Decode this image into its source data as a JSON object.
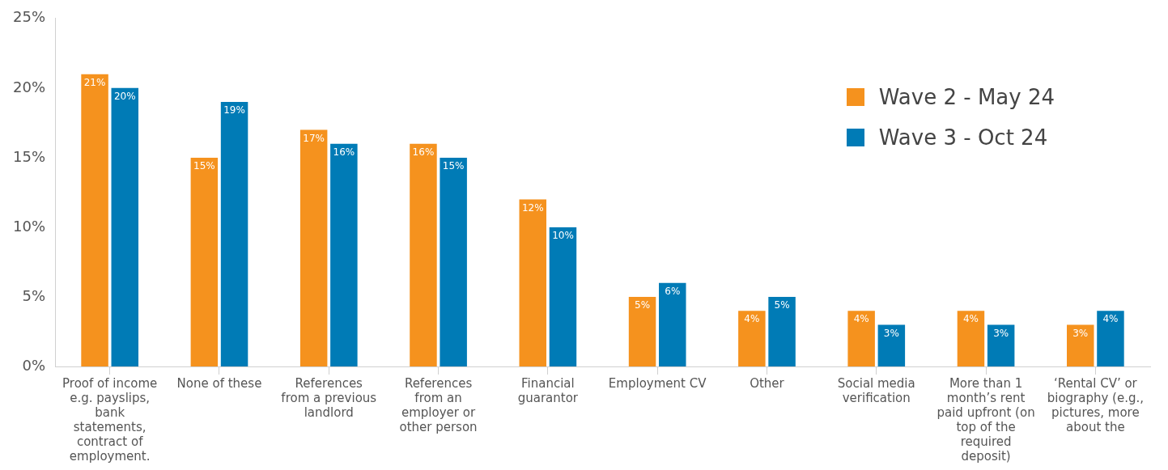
{
  "chart_data": {
    "type": "bar",
    "categories": [
      "Proof of income e.g. payslips, bank statements, contract of employment.",
      "None of these",
      "References from a previous landlord",
      "References from an employer or other person",
      "Financial guarantor",
      "Employment CV",
      "Other",
      "Social media verification",
      "More than 1 month’s rent paid upfront (on top of the required deposit)",
      "‘Rental CV’ or biography (e.g., pictures, more about the"
    ],
    "series": [
      {
        "name": "Wave 2 - May 24",
        "color": "#f5921e",
        "values": [
          21,
          15,
          17,
          16,
          12,
          5,
          4,
          4,
          4,
          3
        ],
        "value_labels": [
          "21%",
          "15%",
          "17%",
          "16%",
          "12%",
          "5%",
          "4%",
          "4%",
          "4%",
          "3%"
        ]
      },
      {
        "name": "Wave 3 - Oct 24",
        "color": "#007bb6",
        "values": [
          20,
          19,
          16,
          15,
          10,
          6,
          5,
          3,
          3,
          4
        ],
        "value_labels": [
          "20%",
          "19%",
          "16%",
          "15%",
          "10%",
          "6%",
          "5%",
          "3%",
          "3%",
          "4%"
        ]
      }
    ],
    "ylim": [
      0,
      25
    ],
    "yticks": [
      {
        "value": 0,
        "label": "0%"
      },
      {
        "value": 5,
        "label": "5%"
      },
      {
        "value": 10,
        "label": "10%"
      },
      {
        "value": 15,
        "label": "15%"
      },
      {
        "value": 20,
        "label": "20%"
      },
      {
        "value": 25,
        "label": "25%"
      }
    ],
    "grid": false,
    "legend": "top right"
  }
}
